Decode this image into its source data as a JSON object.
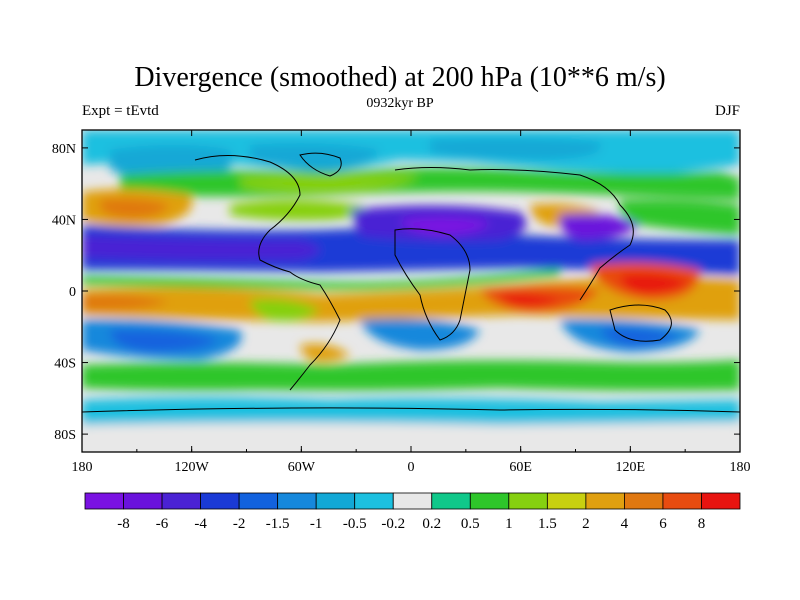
{
  "chart_data": {
    "type": "heatmap",
    "title": "Divergence (smoothed) at 200 hPa (10**6 m/s)",
    "left_label": "Expt = tEvtd",
    "center_label": "0932kyr BP",
    "right_label": "DJF",
    "x_ticks": [
      "180",
      "120W",
      "60W",
      "0",
      "60E",
      "120E",
      "180"
    ],
    "y_ticks": [
      "80N",
      "40N",
      "0",
      "40S",
      "80S"
    ],
    "colorbar_labels": [
      "-8",
      "-6",
      "-4",
      "-2",
      "-1.5",
      "-1",
      "-0.5",
      "-0.2",
      "0.2",
      "0.5",
      "1",
      "1.5",
      "2",
      "4",
      "6",
      "8"
    ],
    "colorbar_colors": [
      "#7a12e2",
      "#6a12dc",
      "#4a22d4",
      "#1a3ad6",
      "#1262de",
      "#1688dc",
      "#12a8d6",
      "#1cc0e0",
      "#e8e8e8",
      "#10c88a",
      "#2ec62a",
      "#86d010",
      "#c8d010",
      "#e0a010",
      "#e07810",
      "#e84c10",
      "#e81410"
    ]
  }
}
